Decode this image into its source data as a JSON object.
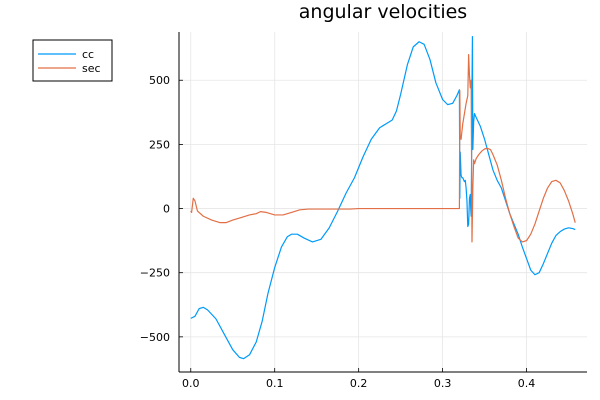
{
  "chart_data": {
    "type": "line",
    "title": "angular velocities",
    "xlabel": "",
    "ylabel": "",
    "xlim": [
      -0.014,
      0.472
    ],
    "ylim": [
      -637,
      688
    ],
    "x_ticks": [
      0.0,
      0.1,
      0.2,
      0.3,
      0.4
    ],
    "x_tick_labels": [
      "0.0",
      "0.1",
      "0.2",
      "0.3",
      "0.4"
    ],
    "y_ticks": [
      -500,
      -250,
      0,
      250,
      500
    ],
    "y_tick_labels": [
      "−500",
      "−250",
      "0",
      "250",
      "500"
    ],
    "grid": true,
    "legend_position": "top-left outside",
    "series": [
      {
        "name": "cc",
        "color": "#009AFA",
        "points": [
          [
            0.0,
            -428
          ],
          [
            0.005,
            -420
          ],
          [
            0.01,
            -390
          ],
          [
            0.015,
            -385
          ],
          [
            0.02,
            -395
          ],
          [
            0.03,
            -430
          ],
          [
            0.04,
            -490
          ],
          [
            0.05,
            -550
          ],
          [
            0.058,
            -580
          ],
          [
            0.063,
            -585
          ],
          [
            0.07,
            -570
          ],
          [
            0.078,
            -520
          ],
          [
            0.085,
            -440
          ],
          [
            0.092,
            -330
          ],
          [
            0.1,
            -230
          ],
          [
            0.108,
            -150
          ],
          [
            0.115,
            -110
          ],
          [
            0.12,
            -100
          ],
          [
            0.127,
            -100
          ],
          [
            0.135,
            -115
          ],
          [
            0.145,
            -130
          ],
          [
            0.155,
            -120
          ],
          [
            0.165,
            -75
          ],
          [
            0.175,
            -10
          ],
          [
            0.185,
            60
          ],
          [
            0.195,
            120
          ],
          [
            0.205,
            200
          ],
          [
            0.215,
            270
          ],
          [
            0.225,
            315
          ],
          [
            0.235,
            335
          ],
          [
            0.24,
            345
          ],
          [
            0.245,
            380
          ],
          [
            0.25,
            445
          ],
          [
            0.258,
            560
          ],
          [
            0.265,
            630
          ],
          [
            0.272,
            650
          ],
          [
            0.278,
            640
          ],
          [
            0.285,
            580
          ],
          [
            0.292,
            490
          ],
          [
            0.3,
            425
          ],
          [
            0.306,
            405
          ],
          [
            0.312,
            410
          ],
          [
            0.317,
            440
          ],
          [
            0.32,
            463
          ],
          [
            0.3205,
            40
          ],
          [
            0.321,
            220
          ],
          [
            0.322,
            130
          ],
          [
            0.323,
            120
          ],
          [
            0.324,
            120
          ],
          [
            0.326,
            105
          ],
          [
            0.327,
            110
          ],
          [
            0.328,
            80
          ],
          [
            0.329,
            30
          ],
          [
            0.33,
            -70
          ],
          [
            0.331,
            -60
          ],
          [
            0.332,
            40
          ],
          [
            0.333,
            55
          ],
          [
            0.3335,
            0
          ],
          [
            0.334,
            -30
          ],
          [
            0.3345,
            180
          ],
          [
            0.335,
            480
          ],
          [
            0.3355,
            670
          ],
          [
            0.336,
            230
          ],
          [
            0.337,
            340
          ],
          [
            0.338,
            370
          ],
          [
            0.34,
            355
          ],
          [
            0.345,
            320
          ],
          [
            0.35,
            270
          ],
          [
            0.355,
            210
          ],
          [
            0.36,
            150
          ],
          [
            0.365,
            110
          ],
          [
            0.37,
            80
          ],
          [
            0.375,
            30
          ],
          [
            0.38,
            -20
          ],
          [
            0.385,
            -60
          ],
          [
            0.39,
            -100
          ],
          [
            0.395,
            -150
          ],
          [
            0.4,
            -195
          ],
          [
            0.405,
            -240
          ],
          [
            0.41,
            -258
          ],
          [
            0.415,
            -250
          ],
          [
            0.42,
            -215
          ],
          [
            0.425,
            -175
          ],
          [
            0.43,
            -135
          ],
          [
            0.435,
            -105
          ],
          [
            0.44,
            -90
          ],
          [
            0.445,
            -80
          ],
          [
            0.45,
            -75
          ],
          [
            0.455,
            -78
          ],
          [
            0.458,
            -82
          ]
        ]
      },
      {
        "name": "sec",
        "color": "#E26F46",
        "points": [
          [
            0.0,
            -10
          ],
          [
            0.001,
            -15
          ],
          [
            0.003,
            40
          ],
          [
            0.005,
            30
          ],
          [
            0.008,
            -10
          ],
          [
            0.015,
            -30
          ],
          [
            0.025,
            -45
          ],
          [
            0.035,
            -55
          ],
          [
            0.042,
            -55
          ],
          [
            0.05,
            -45
          ],
          [
            0.06,
            -35
          ],
          [
            0.07,
            -25
          ],
          [
            0.078,
            -20
          ],
          [
            0.083,
            -12
          ],
          [
            0.09,
            -15
          ],
          [
            0.1,
            -25
          ],
          [
            0.11,
            -25
          ],
          [
            0.12,
            -15
          ],
          [
            0.13,
            -5
          ],
          [
            0.14,
            -2
          ],
          [
            0.15,
            -2
          ],
          [
            0.16,
            -2
          ],
          [
            0.17,
            -2
          ],
          [
            0.18,
            -2
          ],
          [
            0.19,
            -2
          ],
          [
            0.2,
            0
          ],
          [
            0.25,
            0
          ],
          [
            0.3,
            0
          ],
          [
            0.32,
            0
          ],
          [
            0.3205,
            460
          ],
          [
            0.321,
            280
          ],
          [
            0.322,
            270
          ],
          [
            0.323,
            300
          ],
          [
            0.324,
            330
          ],
          [
            0.326,
            370
          ],
          [
            0.328,
            410
          ],
          [
            0.33,
            440
          ],
          [
            0.331,
            600
          ],
          [
            0.332,
            520
          ],
          [
            0.333,
            470
          ],
          [
            0.334,
            500
          ],
          [
            0.335,
            -130
          ],
          [
            0.336,
            80
          ],
          [
            0.337,
            190
          ],
          [
            0.338,
            175
          ],
          [
            0.34,
            195
          ],
          [
            0.343,
            210
          ],
          [
            0.347,
            225
          ],
          [
            0.35,
            232
          ],
          [
            0.353,
            235
          ],
          [
            0.357,
            230
          ],
          [
            0.36,
            210
          ],
          [
            0.365,
            170
          ],
          [
            0.37,
            110
          ],
          [
            0.375,
            40
          ],
          [
            0.38,
            -20
          ],
          [
            0.385,
            -70
          ],
          [
            0.39,
            -115
          ],
          [
            0.395,
            -130
          ],
          [
            0.4,
            -125
          ],
          [
            0.405,
            -100
          ],
          [
            0.41,
            -60
          ],
          [
            0.415,
            -10
          ],
          [
            0.42,
            40
          ],
          [
            0.425,
            80
          ],
          [
            0.43,
            105
          ],
          [
            0.435,
            110
          ],
          [
            0.44,
            100
          ],
          [
            0.445,
            70
          ],
          [
            0.45,
            30
          ],
          [
            0.455,
            -20
          ],
          [
            0.458,
            -55
          ]
        ]
      }
    ]
  }
}
